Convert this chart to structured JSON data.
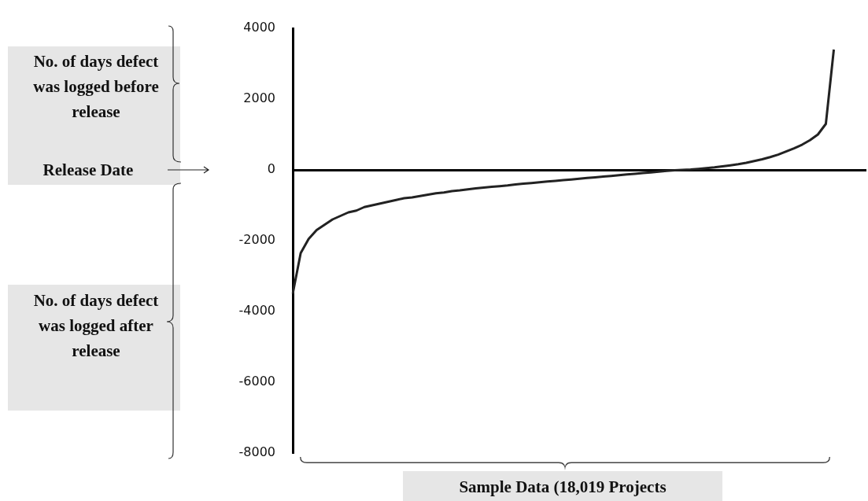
{
  "chart_data": {
    "type": "line",
    "xlabel": "Sample Data (18,019 Projects",
    "annotations": [
      "No. of days defect was logged before release",
      "Release Date",
      "No. of days defect was logged after release"
    ],
    "categories": [
      null,
      null,
      null,
      null,
      null,
      null,
      null,
      null,
      null,
      null,
      null,
      null,
      null,
      null,
      null,
      null,
      null,
      null,
      null,
      null,
      null,
      null,
      null,
      null,
      null,
      null,
      null,
      null,
      null,
      null,
      null,
      null,
      null,
      null,
      null,
      null,
      null,
      null,
      null,
      null,
      null,
      null,
      null,
      null,
      null,
      null,
      null,
      null,
      null,
      null,
      null,
      null,
      null,
      null,
      null,
      null,
      null,
      null,
      null,
      null,
      null,
      null,
      null,
      null,
      null,
      null,
      null,
      null,
      null,
      null,
      null,
      null,
      null
    ],
    "values": [
      -3500,
      -2350,
      -1950,
      -1700,
      -1550,
      -1400,
      -1300,
      -1200,
      -1150,
      -1050,
      -1000,
      -950,
      -900,
      -850,
      -800,
      -780,
      -740,
      -700,
      -660,
      -640,
      -600,
      -580,
      -550,
      -520,
      -500,
      -480,
      -460,
      -440,
      -410,
      -390,
      -370,
      -350,
      -330,
      -310,
      -290,
      -270,
      -250,
      -230,
      -210,
      -190,
      -170,
      -150,
      -130,
      -110,
      -90,
      -70,
      -50,
      -30,
      -10,
      0,
      10,
      30,
      50,
      70,
      100,
      130,
      160,
      200,
      250,
      300,
      360,
      430,
      520,
      610,
      710,
      840,
      1000,
      1300,
      3400,
      null,
      null,
      null,
      null
    ],
    "color": "#222222",
    "ylim": [
      -8000,
      4000
    ],
    "yticks": [
      -8000,
      -6000,
      -4000,
      -2000,
      0,
      2000,
      4000
    ]
  }
}
